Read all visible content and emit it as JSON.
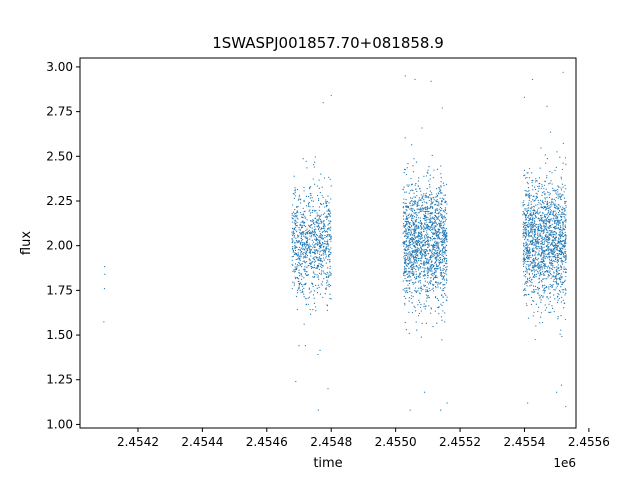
{
  "chart_data": {
    "type": "scatter",
    "title": "1SWASPJ001857.70+081858.9",
    "xlabel": "time",
    "ylabel": "flux",
    "x_offset_label": "1e6",
    "xlim": [
      2454020,
      2455560
    ],
    "ylim": [
      0.98,
      3.05
    ],
    "x_ticks": [
      2454200,
      2454400,
      2454600,
      2454800,
      2455000,
      2455200,
      2455400,
      2455600
    ],
    "x_tick_labels": [
      "2.4542",
      "2.4544",
      "2.4546",
      "2.4548",
      "2.4550",
      "2.4552",
      "2.4554",
      "2.4556"
    ],
    "y_ticks": [
      1.0,
      1.25,
      1.5,
      1.75,
      2.0,
      2.25,
      2.5,
      2.75,
      3.0
    ],
    "y_tick_labels": [
      "1.00",
      "1.25",
      "1.50",
      "1.75",
      "2.00",
      "2.25",
      "2.50",
      "2.75",
      "3.00"
    ],
    "grid": false,
    "marker_color": "#1f77b4",
    "series": [
      {
        "seasons": [
          {
            "x_range": [
              2454094,
              2454098
            ],
            "y_center": 1.85,
            "y_spread": 0.1,
            "count": 4
          },
          {
            "x_range": [
              2454678,
              2454800
            ],
            "y_center": 2.02,
            "y_spread": 0.15,
            "count": 900
          },
          {
            "x_range": [
              2455023,
              2455160
            ],
            "y_center": 2.02,
            "y_spread": 0.17,
            "count": 1600
          },
          {
            "x_range": [
              2455395,
              2455530
            ],
            "y_center": 2.02,
            "y_spread": 0.17,
            "count": 1600
          }
        ],
        "outliers": [
          [
            2454690,
            1.24
          ],
          [
            2454700,
            1.44
          ],
          [
            2454760,
            1.08
          ],
          [
            2454775,
            2.8
          ],
          [
            2454790,
            1.2
          ],
          [
            2454800,
            2.84
          ],
          [
            2455030,
            2.95
          ],
          [
            2455045,
            1.08
          ],
          [
            2455060,
            2.93
          ],
          [
            2455090,
            1.18
          ],
          [
            2455110,
            2.92
          ],
          [
            2455140,
            1.08
          ],
          [
            2455145,
            2.77
          ],
          [
            2455160,
            1.12
          ],
          [
            2455400,
            2.83
          ],
          [
            2455410,
            1.12
          ],
          [
            2455425,
            2.93
          ],
          [
            2455470,
            2.78
          ],
          [
            2455500,
            1.18
          ],
          [
            2455520,
            2.97
          ],
          [
            2455528,
            1.1
          ],
          [
            2455515,
            1.22
          ]
        ]
      }
    ]
  }
}
